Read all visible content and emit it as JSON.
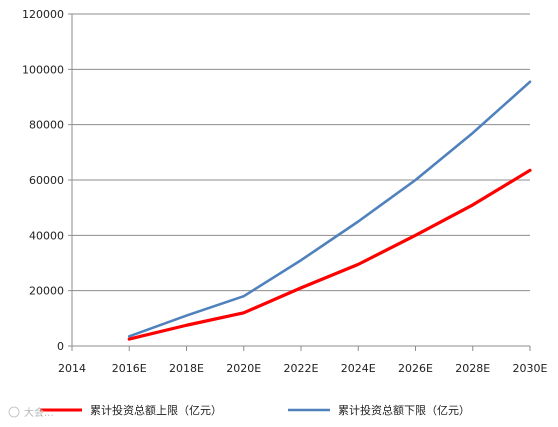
{
  "chart_data": {
    "type": "line",
    "categories": [
      "2014",
      "2016E",
      "2018E",
      "2020E",
      "2022E",
      "2024E",
      "2026E",
      "2028E",
      "2030E"
    ],
    "yticks": [
      "0",
      "20000",
      "40000",
      "60000",
      "80000",
      "100000",
      "120000"
    ],
    "ylim": [
      0,
      120000
    ],
    "grid": true,
    "legend_position": "bottom",
    "series": [
      {
        "name": "累计投资总额上限（亿元）",
        "color": "#ff0000",
        "values": [
          null,
          2500,
          7500,
          12000,
          21000,
          29500,
          40000,
          51000,
          63500
        ]
      },
      {
        "name": "累计投资总额下限（亿元）",
        "color": "#4f81bd",
        "values": [
          null,
          3500,
          11000,
          18000,
          31000,
          45000,
          60000,
          77000,
          95500
        ]
      }
    ]
  },
  "watermark": "大会..."
}
